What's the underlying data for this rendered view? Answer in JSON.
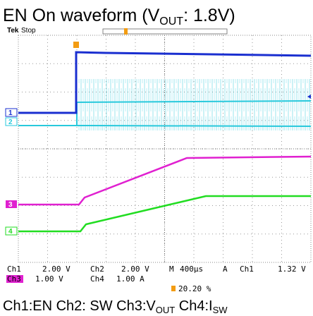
{
  "title": {
    "text": "EN On waveform (V",
    "sub": "OUT",
    "tail": ": 1.8V)"
  },
  "header": {
    "brand": "Tek",
    "status": "Stop"
  },
  "channel_markers": [
    "1",
    "2",
    "3",
    "4"
  ],
  "status": {
    "row1": [
      "Ch1",
      "2.00 V",
      "Ch2",
      "2.00 V",
      "M",
      "400µs",
      "A",
      "Ch1",
      "1.32 V"
    ],
    "row2": [
      "Ch3",
      "1.00 V",
      "Ch4",
      "1.00 A"
    ],
    "position": "20.20 %"
  },
  "caption": {
    "a": "Ch1:EN Ch2: SW Ch3:V",
    "b": "OUT",
    "c": " Ch4:I",
    "d": "SW"
  }
}
